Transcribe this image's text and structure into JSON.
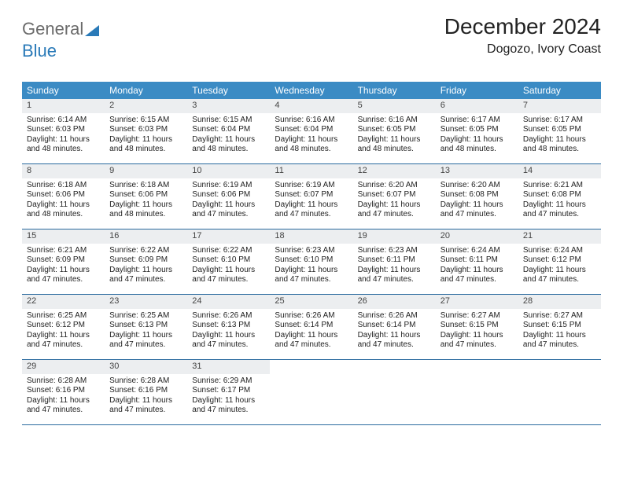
{
  "logo": {
    "part1": "General",
    "part2": "Blue"
  },
  "header": {
    "month_title": "December 2024",
    "location": "Dogozo, Ivory Coast"
  },
  "colors": {
    "header_bg": "#3b8bc4",
    "daynum_bg": "#eceef0",
    "row_border": "#2a6a9e",
    "logo_gray": "#6b6b6b",
    "logo_blue": "#2a7ab8"
  },
  "weekdays": [
    "Sunday",
    "Monday",
    "Tuesday",
    "Wednesday",
    "Thursday",
    "Friday",
    "Saturday"
  ],
  "weeks": [
    [
      {
        "num": "1",
        "sunrise": "Sunrise: 6:14 AM",
        "sunset": "Sunset: 6:03 PM",
        "day1": "Daylight: 11 hours",
        "day2": "and 48 minutes."
      },
      {
        "num": "2",
        "sunrise": "Sunrise: 6:15 AM",
        "sunset": "Sunset: 6:03 PM",
        "day1": "Daylight: 11 hours",
        "day2": "and 48 minutes."
      },
      {
        "num": "3",
        "sunrise": "Sunrise: 6:15 AM",
        "sunset": "Sunset: 6:04 PM",
        "day1": "Daylight: 11 hours",
        "day2": "and 48 minutes."
      },
      {
        "num": "4",
        "sunrise": "Sunrise: 6:16 AM",
        "sunset": "Sunset: 6:04 PM",
        "day1": "Daylight: 11 hours",
        "day2": "and 48 minutes."
      },
      {
        "num": "5",
        "sunrise": "Sunrise: 6:16 AM",
        "sunset": "Sunset: 6:05 PM",
        "day1": "Daylight: 11 hours",
        "day2": "and 48 minutes."
      },
      {
        "num": "6",
        "sunrise": "Sunrise: 6:17 AM",
        "sunset": "Sunset: 6:05 PM",
        "day1": "Daylight: 11 hours",
        "day2": "and 48 minutes."
      },
      {
        "num": "7",
        "sunrise": "Sunrise: 6:17 AM",
        "sunset": "Sunset: 6:05 PM",
        "day1": "Daylight: 11 hours",
        "day2": "and 48 minutes."
      }
    ],
    [
      {
        "num": "8",
        "sunrise": "Sunrise: 6:18 AM",
        "sunset": "Sunset: 6:06 PM",
        "day1": "Daylight: 11 hours",
        "day2": "and 48 minutes."
      },
      {
        "num": "9",
        "sunrise": "Sunrise: 6:18 AM",
        "sunset": "Sunset: 6:06 PM",
        "day1": "Daylight: 11 hours",
        "day2": "and 48 minutes."
      },
      {
        "num": "10",
        "sunrise": "Sunrise: 6:19 AM",
        "sunset": "Sunset: 6:06 PM",
        "day1": "Daylight: 11 hours",
        "day2": "and 47 minutes."
      },
      {
        "num": "11",
        "sunrise": "Sunrise: 6:19 AM",
        "sunset": "Sunset: 6:07 PM",
        "day1": "Daylight: 11 hours",
        "day2": "and 47 minutes."
      },
      {
        "num": "12",
        "sunrise": "Sunrise: 6:20 AM",
        "sunset": "Sunset: 6:07 PM",
        "day1": "Daylight: 11 hours",
        "day2": "and 47 minutes."
      },
      {
        "num": "13",
        "sunrise": "Sunrise: 6:20 AM",
        "sunset": "Sunset: 6:08 PM",
        "day1": "Daylight: 11 hours",
        "day2": "and 47 minutes."
      },
      {
        "num": "14",
        "sunrise": "Sunrise: 6:21 AM",
        "sunset": "Sunset: 6:08 PM",
        "day1": "Daylight: 11 hours",
        "day2": "and 47 minutes."
      }
    ],
    [
      {
        "num": "15",
        "sunrise": "Sunrise: 6:21 AM",
        "sunset": "Sunset: 6:09 PM",
        "day1": "Daylight: 11 hours",
        "day2": "and 47 minutes."
      },
      {
        "num": "16",
        "sunrise": "Sunrise: 6:22 AM",
        "sunset": "Sunset: 6:09 PM",
        "day1": "Daylight: 11 hours",
        "day2": "and 47 minutes."
      },
      {
        "num": "17",
        "sunrise": "Sunrise: 6:22 AM",
        "sunset": "Sunset: 6:10 PM",
        "day1": "Daylight: 11 hours",
        "day2": "and 47 minutes."
      },
      {
        "num": "18",
        "sunrise": "Sunrise: 6:23 AM",
        "sunset": "Sunset: 6:10 PM",
        "day1": "Daylight: 11 hours",
        "day2": "and 47 minutes."
      },
      {
        "num": "19",
        "sunrise": "Sunrise: 6:23 AM",
        "sunset": "Sunset: 6:11 PM",
        "day1": "Daylight: 11 hours",
        "day2": "and 47 minutes."
      },
      {
        "num": "20",
        "sunrise": "Sunrise: 6:24 AM",
        "sunset": "Sunset: 6:11 PM",
        "day1": "Daylight: 11 hours",
        "day2": "and 47 minutes."
      },
      {
        "num": "21",
        "sunrise": "Sunrise: 6:24 AM",
        "sunset": "Sunset: 6:12 PM",
        "day1": "Daylight: 11 hours",
        "day2": "and 47 minutes."
      }
    ],
    [
      {
        "num": "22",
        "sunrise": "Sunrise: 6:25 AM",
        "sunset": "Sunset: 6:12 PM",
        "day1": "Daylight: 11 hours",
        "day2": "and 47 minutes."
      },
      {
        "num": "23",
        "sunrise": "Sunrise: 6:25 AM",
        "sunset": "Sunset: 6:13 PM",
        "day1": "Daylight: 11 hours",
        "day2": "and 47 minutes."
      },
      {
        "num": "24",
        "sunrise": "Sunrise: 6:26 AM",
        "sunset": "Sunset: 6:13 PM",
        "day1": "Daylight: 11 hours",
        "day2": "and 47 minutes."
      },
      {
        "num": "25",
        "sunrise": "Sunrise: 6:26 AM",
        "sunset": "Sunset: 6:14 PM",
        "day1": "Daylight: 11 hours",
        "day2": "and 47 minutes."
      },
      {
        "num": "26",
        "sunrise": "Sunrise: 6:26 AM",
        "sunset": "Sunset: 6:14 PM",
        "day1": "Daylight: 11 hours",
        "day2": "and 47 minutes."
      },
      {
        "num": "27",
        "sunrise": "Sunrise: 6:27 AM",
        "sunset": "Sunset: 6:15 PM",
        "day1": "Daylight: 11 hours",
        "day2": "and 47 minutes."
      },
      {
        "num": "28",
        "sunrise": "Sunrise: 6:27 AM",
        "sunset": "Sunset: 6:15 PM",
        "day1": "Daylight: 11 hours",
        "day2": "and 47 minutes."
      }
    ],
    [
      {
        "num": "29",
        "sunrise": "Sunrise: 6:28 AM",
        "sunset": "Sunset: 6:16 PM",
        "day1": "Daylight: 11 hours",
        "day2": "and 47 minutes."
      },
      {
        "num": "30",
        "sunrise": "Sunrise: 6:28 AM",
        "sunset": "Sunset: 6:16 PM",
        "day1": "Daylight: 11 hours",
        "day2": "and 47 minutes."
      },
      {
        "num": "31",
        "sunrise": "Sunrise: 6:29 AM",
        "sunset": "Sunset: 6:17 PM",
        "day1": "Daylight: 11 hours",
        "day2": "and 47 minutes."
      },
      {
        "empty": true
      },
      {
        "empty": true
      },
      {
        "empty": true
      },
      {
        "empty": true
      }
    ]
  ]
}
